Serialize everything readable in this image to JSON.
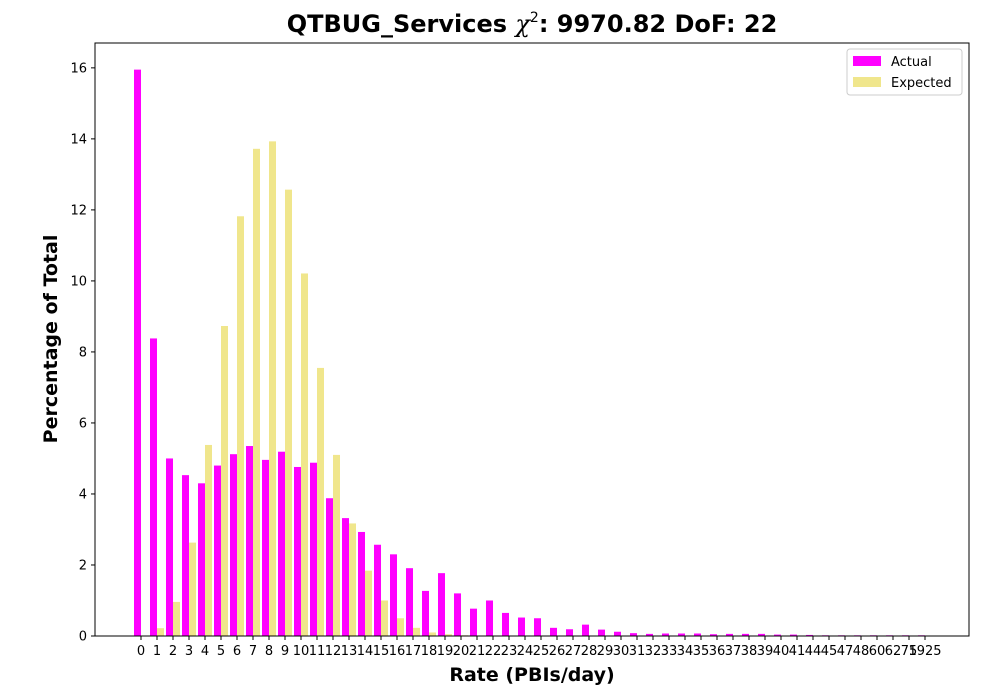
{
  "chart_data": {
    "type": "bar",
    "title_main": "QTBUG_Services ",
    "title_chi": "χ",
    "title_sup": "2",
    "title_rest": ": 9970.82 DoF: 22",
    "xlabel": "Rate (PBIs/day)",
    "ylabel": "Percentage of Total",
    "ylim": [
      0,
      16.7
    ],
    "yticks": [
      0,
      2,
      4,
      6,
      8,
      10,
      12,
      14,
      16
    ],
    "legend_position": "top-right",
    "grid": false,
    "categories": [
      "0",
      "1",
      "2",
      "3",
      "4",
      "5",
      "6",
      "7",
      "8",
      "9",
      "10",
      "11",
      "12",
      "13",
      "14",
      "15",
      "16",
      "17",
      "18",
      "19",
      "20",
      "21",
      "22",
      "23",
      "24",
      "25",
      "26",
      "27",
      "28",
      "29",
      "30",
      "31",
      "32",
      "33",
      "34",
      "35",
      "36",
      "37",
      "38",
      "39",
      "40",
      "41",
      "44",
      "45",
      "47",
      "48",
      "60",
      "62",
      "75",
      "1925"
    ],
    "series": [
      {
        "name": "Actual",
        "color": "#ff00ff",
        "values": [
          15.95,
          8.38,
          5.0,
          4.53,
          4.3,
          4.8,
          5.12,
          5.35,
          4.96,
          5.19,
          4.76,
          4.88,
          3.88,
          3.32,
          2.93,
          2.57,
          2.3,
          1.91,
          1.27,
          1.77,
          1.2,
          0.77,
          1.0,
          0.65,
          0.52,
          0.5,
          0.23,
          0.19,
          0.32,
          0.18,
          0.12,
          0.08,
          0.06,
          0.07,
          0.07,
          0.07,
          0.05,
          0.06,
          0.06,
          0.06,
          0.04,
          0.04,
          0.03,
          0.02,
          0.02,
          0.02,
          0.02,
          0.02,
          0.02,
          0.02
        ]
      },
      {
        "name": "Expected",
        "color": "#f0e68c",
        "values": [
          0.01,
          0.22,
          0.96,
          2.63,
          5.38,
          8.73,
          11.82,
          13.72,
          13.93,
          12.57,
          10.21,
          7.55,
          5.1,
          3.17,
          1.84,
          1.0,
          0.5,
          0.23,
          0.1,
          0.05,
          0.02,
          0.01,
          0,
          0,
          0,
          0,
          0,
          0,
          0,
          0,
          0,
          0,
          0,
          0,
          0,
          0,
          0,
          0,
          0,
          0,
          0,
          0,
          0,
          0,
          0,
          0,
          0,
          0,
          0,
          0
        ]
      }
    ]
  }
}
